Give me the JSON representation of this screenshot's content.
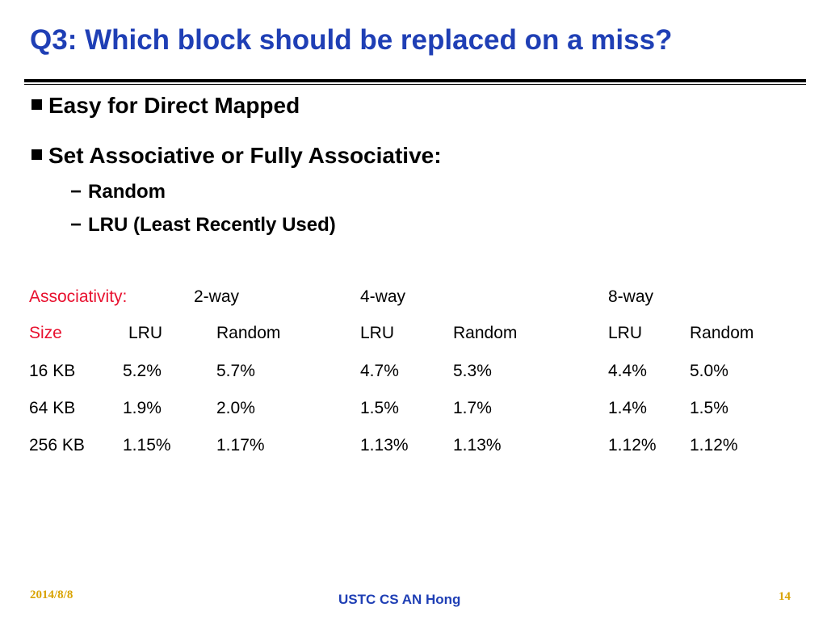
{
  "slide": {
    "title": "Q3: Which block should be replaced on a miss?",
    "bullets": [
      "Easy for Direct Mapped",
      "Set Associative or Fully Associative:"
    ],
    "sub_bullets": [
      "Random",
      "LRU (Least Recently Used)"
    ],
    "dash": "−"
  },
  "table": {
    "assoc_label": "Associativity:",
    "ways": [
      "2-way",
      "4-way",
      "8-way"
    ],
    "size_label": "Size",
    "col_headers": [
      "LRU",
      "Random",
      "LRU",
      "Random",
      "LRU",
      "Random"
    ],
    "rows": [
      [
        "16 KB",
        "5.2%",
        "5.7%",
        "4.7%",
        "5.3%",
        "4.4%",
        "5.0%"
      ],
      [
        "64 KB",
        "1.9%",
        "2.0%",
        "1.5%",
        "1.7%",
        "1.4%",
        "1.5%"
      ],
      [
        "256 KB",
        "1.15%",
        "1.17%",
        "1.13%",
        "1.13%",
        "1.12%",
        "1.12%"
      ]
    ]
  },
  "footer": {
    "date": "2014/8/8",
    "author": "USTC CS AN Hong",
    "page": "14"
  },
  "colors": {
    "title": "#1f3fb5",
    "highlight": "#e8102e",
    "footer_accent": "#d9a300"
  }
}
